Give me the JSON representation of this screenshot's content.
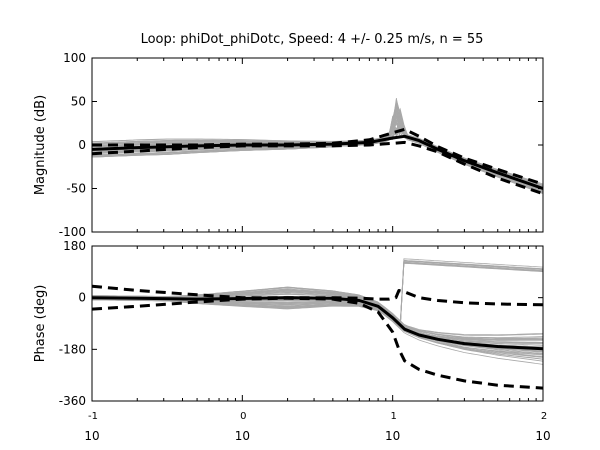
{
  "chart_data": {
    "type": "line",
    "title": "Loop: phiDot_phiDotc, Speed: 4 +/- 0.25 m/s, n = 55",
    "x_scale": "log",
    "xlim": [
      0.1,
      100
    ],
    "x_ticks": [
      {
        "base": "10",
        "exp": "-1",
        "value": 0.1
      },
      {
        "base": "10",
        "exp": "0",
        "value": 1
      },
      {
        "base": "10",
        "exp": "1",
        "value": 10
      },
      {
        "base": "10",
        "exp": "2",
        "value": 100
      }
    ],
    "panels": [
      {
        "id": "magnitude",
        "ylabel": "Magnitude (dB)",
        "ylim": [
          -100,
          100
        ],
        "y_ticks": [
          100,
          50,
          0,
          -50,
          -100
        ],
        "y_tick_labels": [
          "100",
          "50",
          "0",
          "-50",
          "-100"
        ],
        "series": [
          {
            "style": "solid",
            "color": "#000000",
            "x": [
              0.1,
              0.2,
              0.5,
              1,
              2,
              4,
              7,
              10,
              12,
              15,
              20,
              30,
              50,
              100
            ],
            "y": [
              -5,
              -3,
              -1,
              0,
              0,
              1,
              3,
              8,
              10,
              5,
              -5,
              -18,
              -32,
              -50
            ]
          },
          {
            "style": "dashed",
            "color": "#000000",
            "x": [
              0.1,
              0.2,
              0.5,
              1,
              2,
              4,
              7,
              10,
              12,
              15,
              20,
              30,
              50,
              100
            ],
            "y": [
              0,
              0,
              0,
              1,
              1,
              2,
              6,
              14,
              18,
              10,
              -2,
              -15,
              -28,
              -45
            ]
          },
          {
            "style": "dashed",
            "color": "#000000",
            "x": [
              0.1,
              0.2,
              0.5,
              1,
              2,
              4,
              7,
              10,
              12,
              15,
              20,
              30,
              50,
              100
            ],
            "y": [
              -10,
              -7,
              -3,
              -1,
              -1,
              -1,
              0,
              2,
              3,
              -1,
              -8,
              -22,
              -38,
              -56
            ]
          }
        ],
        "gray_traces": {
          "count": 55,
          "color": "#a9a9a9",
          "base_x": [
            0.1,
            0.2,
            0.5,
            1,
            2,
            4,
            7,
            10,
            12,
            15,
            20,
            30,
            50,
            100
          ],
          "base_y": [
            -5,
            -3,
            -1,
            0,
            0,
            1,
            3,
            8,
            10,
            5,
            -5,
            -18,
            -32,
            -50
          ],
          "peak_max": 58
        }
      },
      {
        "id": "phase",
        "ylabel": "Phase (deg)",
        "ylim": [
          -360,
          180
        ],
        "y_ticks": [
          180,
          0,
          -180,
          -360
        ],
        "y_tick_labels": [
          "180",
          "0",
          "-180",
          "-360"
        ],
        "series": [
          {
            "style": "solid",
            "color": "#000000",
            "x": [
              0.1,
              0.2,
              0.5,
              1,
              2,
              4,
              6,
              8,
              10,
              12,
              15,
              20,
              30,
              50,
              100
            ],
            "y": [
              0,
              -2,
              -5,
              -3,
              0,
              -2,
              -10,
              -30,
              -70,
              -110,
              -130,
              -145,
              -160,
              -170,
              -178
            ]
          },
          {
            "style": "dashed",
            "color": "#000000",
            "x": [
              0.1,
              0.2,
              0.5,
              1,
              2,
              4,
              6,
              8,
              9.5,
              10.5,
              11,
              12,
              15,
              20,
              30,
              50,
              100
            ],
            "y": [
              40,
              25,
              10,
              0,
              0,
              0,
              -2,
              -5,
              -5,
              0,
              25,
              20,
              0,
              -10,
              -18,
              -22,
              -25
            ]
          },
          {
            "style": "dashed",
            "color": "#000000",
            "x": [
              0.1,
              0.2,
              0.5,
              1,
              2,
              4,
              6,
              8,
              10,
              11,
              12,
              15,
              20,
              30,
              50,
              100
            ],
            "y": [
              -40,
              -30,
              -15,
              -5,
              -2,
              -5,
              -20,
              -50,
              -120,
              -180,
              -220,
              -250,
              -270,
              -290,
              -305,
              -315
            ]
          }
        ],
        "gray_traces": {
          "count": 55,
          "color": "#a9a9a9",
          "base_x": [
            0.1,
            0.2,
            0.5,
            1,
            2,
            4,
            6,
            8,
            10,
            12,
            15,
            20,
            30,
            50,
            100
          ],
          "base_y": [
            0,
            -2,
            -5,
            -3,
            0,
            -2,
            -10,
            -30,
            -70,
            -110,
            -130,
            -145,
            -160,
            -170,
            -178
          ],
          "upper_branch_y": 100
        }
      }
    ]
  }
}
